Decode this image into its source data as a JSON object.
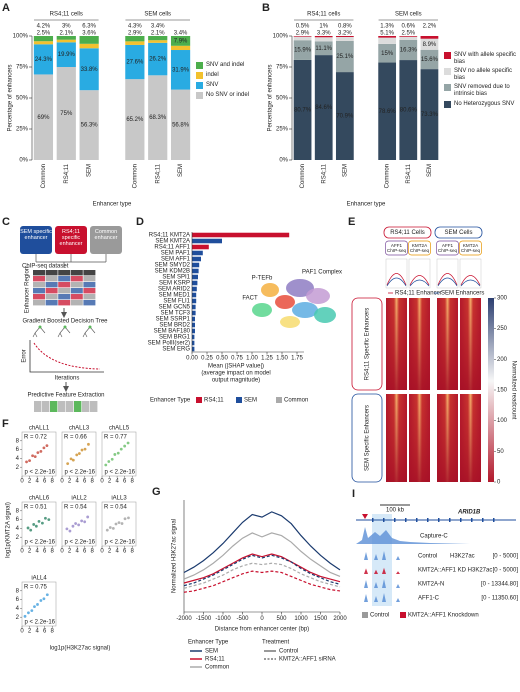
{
  "panel_letters": [
    "A",
    "B",
    "C",
    "D",
    "E",
    "F",
    "G",
    "I"
  ],
  "chart_data": [
    {
      "type": "stacked_bar",
      "ylabel": "Percentage of enhancers",
      "xlabel": "Enhancer type",
      "groups": [
        {
          "name": "RS4;11 cells",
          "categories": [
            "Common",
            "RS4;11",
            "SEM"
          ]
        },
        {
          "name": "SEM cells",
          "categories": [
            "Common",
            "RS4;11",
            "SEM"
          ]
        }
      ],
      "ylim": [
        0,
        100
      ],
      "yticks": [
        {
          "value": 0,
          "label": "0%"
        },
        {
          "value": 25,
          "label": "25%"
        },
        {
          "value": 50,
          "label": "50%"
        },
        {
          "value": 75,
          "label": "75%"
        },
        {
          "value": 100,
          "label": "100%"
        }
      ],
      "series": [
        {
          "name": "No SNV or indel",
          "color": "#c8c8c8",
          "values": [
            69,
            75,
            56.3,
            65.2,
            68.3,
            56.8
          ],
          "value_labels": [
            "69%",
            "75%",
            "56.3%",
            "65.2%",
            "68.3%",
            "56.8%"
          ]
        },
        {
          "name": "SNV",
          "color": "#29abe2",
          "values": [
            24.3,
            19.9,
            33.8,
            27.6,
            26.2,
            31.9
          ],
          "value_labels": [
            "24.3%",
            "19.9%",
            "33.8%",
            "27.6%",
            "26.2%",
            "31.9%"
          ]
        },
        {
          "name": "indel",
          "color": "#f2c12e",
          "values": [
            2.5,
            2.1,
            3.6,
            2.9,
            2.1,
            3.4
          ],
          "value_labels": [
            "2.5%",
            "2.1%",
            "3.6%",
            "2.9%",
            "2.1%",
            "3.4%"
          ]
        },
        {
          "name": "SNV and indel",
          "color": "#4cae4c",
          "values": [
            4.2,
            3,
            6.3,
            4.3,
            3.4,
            7.9
          ],
          "value_labels": [
            "4.2%",
            "3%",
            "6.3%",
            "4.3%",
            "3.4%",
            "7.9%"
          ]
        }
      ]
    },
    {
      "type": "stacked_bar",
      "ylabel": "Percentage of enhancers",
      "xlabel": "Enhancer type",
      "groups": [
        {
          "name": "RS4;11 cells",
          "categories": [
            "Common",
            "RS4;11",
            "SEM"
          ]
        },
        {
          "name": "SEM cells",
          "categories": [
            "Common",
            "RS4;11",
            "SEM"
          ]
        }
      ],
      "ylim": [
        0,
        100
      ],
      "yticks": [
        {
          "value": 0,
          "label": "0%"
        },
        {
          "value": 25,
          "label": "25%"
        },
        {
          "value": 50,
          "label": "50%"
        },
        {
          "value": 75,
          "label": "75%"
        },
        {
          "value": 100,
          "label": "100%"
        }
      ],
      "series": [
        {
          "name": "No Heterozygous SNV",
          "color": "#34495e",
          "values": [
            80.7,
            84.6,
            70.9,
            78.6,
            80.6,
            73.3
          ],
          "value_labels": [
            "80.7%",
            "84.6%",
            "70.9%",
            "78.6%",
            "80.6%",
            "73.3%"
          ]
        },
        {
          "name": "SNV removed due to intrinsic bias",
          "color": "#95a5a6",
          "values": [
            15.9,
            11.1,
            25.1,
            15,
            16.3,
            15.6
          ],
          "value_labels": [
            "15.9%",
            "11.1%",
            "25.1%",
            "15%",
            "16.3%",
            "15.6%"
          ]
        },
        {
          "name": "SNV no allele specific bias",
          "color": "#dcdcdc",
          "values": [
            2.9,
            3.3,
            3.2,
            5.1,
            2.5,
            8.9
          ],
          "value_labels": [
            "2.9%",
            "3.3%",
            "3.2%",
            "5.1%",
            "2.5%",
            "8.9%"
          ]
        },
        {
          "name": "SNV with allele specific bias",
          "color": "#c8102e",
          "values": [
            0.5,
            1,
            0.8,
            1.3,
            0.6,
            2.2
          ],
          "value_labels": [
            "0.5%",
            "1%",
            "0.8%",
            "1.3%",
            "0.6%",
            "2.2%"
          ]
        }
      ]
    },
    {
      "type": "hbar",
      "categories": [
        "RS4;11 KMT2A",
        "SEM KMT2A",
        "RS4;11 AFF1",
        "SEM PAF1",
        "SEM AFF1",
        "SEM SMYD2",
        "SEM KDM2B",
        "SEM SPI1",
        "SEM KSRP",
        "SEM ARID2",
        "SEM MED1",
        "SEM FLI1",
        "SEM GCN5",
        "SEM TCF3",
        "SEM SSRP1",
        "SEM BRD2",
        "SEM BAF180",
        "SEM BRG1",
        "SEM PolII(ser2)",
        "SEM ERG"
      ],
      "values": [
        1.62,
        0.5,
        0.28,
        0.18,
        0.15,
        0.12,
        0.11,
        0.1,
        0.09,
        0.08,
        0.07,
        0.07,
        0.06,
        0.06,
        0.05,
        0.05,
        0.05,
        0.04,
        0.04,
        0.04
      ],
      "bar_colors": [
        "#c8102e",
        "#1f4e9c",
        "#c8102e",
        "#1f4e9c",
        "#1f4e9c",
        "#1f4e9c",
        "#1f4e9c",
        "#1f4e9c",
        "#1f4e9c",
        "#1f4e9c",
        "#1f4e9c",
        "#1f4e9c",
        "#1f4e9c",
        "#1f4e9c",
        "#1f4e9c",
        "#1f4e9c",
        "#1f4e9c",
        "#1f4e9c",
        "#1f4e9c",
        "#1f4e9c"
      ],
      "xlim": [
        0,
        1.8
      ],
      "xticks": [
        {
          "value": 0,
          "label": "0.00"
        },
        {
          "value": 0.25,
          "label": "0.25"
        },
        {
          "value": 0.5,
          "label": "0.50"
        },
        {
          "value": 0.75,
          "label": "0.75"
        },
        {
          "value": 1,
          "label": "1.00"
        },
        {
          "value": 1.25,
          "label": "1.25"
        },
        {
          "value": 1.5,
          "label": "1.50"
        },
        {
          "value": 1.75,
          "label": "1.75"
        }
      ],
      "xlabel": [
        "Mean (|SHAP value|)",
        "(average impact on model",
        "output magnitude)"
      ],
      "legend_title": "Enhancer Type",
      "legend": [
        {
          "name": "RS4;11",
          "color": "#c8102e"
        },
        {
          "name": "SEM",
          "color": "#1f4e9c"
        },
        {
          "name": "Common",
          "color": "#aaaaaa"
        }
      ],
      "annotations": [
        "PAF1 Complex",
        "P-TEFb",
        "FACT"
      ]
    },
    {
      "type": "line",
      "ylabel": "Normalized H3K27ac signal",
      "xlabel": "Distance from enhancer center (bp)",
      "x": [
        -2000,
        -1750,
        -1500,
        -1250,
        -1000,
        -750,
        -500,
        -250,
        0,
        250,
        500,
        750,
        1000,
        1250,
        1500,
        1750,
        2000
      ],
      "xlim": [
        -2000,
        2000
      ],
      "xticks": [
        -2000,
        -1500,
        -1000,
        -500,
        0,
        500,
        1000,
        1500,
        2000
      ],
      "ylim": [
        0,
        0.85
      ],
      "series": [
        {
          "color": "#1a3a6e",
          "dashed": false,
          "values": [
            0.3,
            0.34,
            0.39,
            0.45,
            0.52,
            0.6,
            0.68,
            0.74,
            0.72,
            0.76,
            0.73,
            0.67,
            0.58,
            0.5,
            0.43,
            0.37,
            0.32
          ]
        },
        {
          "color": "#aaaaaa",
          "dashed": false,
          "values": [
            0.25,
            0.28,
            0.32,
            0.37,
            0.43,
            0.5,
            0.56,
            0.6,
            0.57,
            0.6,
            0.58,
            0.53,
            0.46,
            0.4,
            0.35,
            0.3,
            0.27
          ]
        },
        {
          "color": "#c8102e",
          "dashed": false,
          "values": [
            0.22,
            0.24,
            0.26,
            0.29,
            0.33,
            0.37,
            0.41,
            0.44,
            0.42,
            0.44,
            0.42,
            0.38,
            0.34,
            0.3,
            0.27,
            0.25,
            0.23
          ]
        },
        {
          "color": "#1a3a6e",
          "dashed": true,
          "values": [
            0.2,
            0.22,
            0.25,
            0.28,
            0.32,
            0.36,
            0.4,
            0.43,
            0.41,
            0.43,
            0.41,
            0.38,
            0.33,
            0.29,
            0.26,
            0.23,
            0.21
          ]
        },
        {
          "color": "#aaaaaa",
          "dashed": true,
          "values": [
            0.18,
            0.2,
            0.22,
            0.25,
            0.28,
            0.32,
            0.35,
            0.37,
            0.36,
            0.37,
            0.36,
            0.33,
            0.29,
            0.26,
            0.23,
            0.21,
            0.19
          ]
        },
        {
          "color": "#c8102e",
          "dashed": true,
          "values": [
            0.15,
            0.16,
            0.18,
            0.2,
            0.23,
            0.26,
            0.29,
            0.31,
            0.3,
            0.31,
            0.3,
            0.27,
            0.24,
            0.21,
            0.19,
            0.17,
            0.16
          ]
        }
      ],
      "legend": {
        "enhancer_title": "Enhancer Type",
        "enhancers": [
          {
            "name": "SEM",
            "color": "#1a3a6e"
          },
          {
            "name": "RS4;11",
            "color": "#c8102e"
          },
          {
            "name": "Common",
            "color": "#aaaaaa"
          }
        ],
        "treatment_title": "Treatment",
        "treatments": [
          {
            "name": "Control",
            "dashed": false
          },
          {
            "name": "KMT2A::AFF1 siRNA",
            "dashed": true
          }
        ]
      }
    },
    {
      "type": "scatter",
      "ylabel": "log1p(KMT2A signal)",
      "xlabel": "log1p(H3K27ac signal)",
      "xlim": [
        0,
        9
      ],
      "ylim": [
        0,
        10
      ],
      "xticks": [
        0,
        2,
        4,
        6,
        8
      ],
      "yticks": [
        2,
        4,
        6,
        8
      ],
      "subplots": [
        {
          "title": "chALL1",
          "color": "#c0392b",
          "r_label": "R = 0.72",
          "p_label": "p < 2.2e-16",
          "x": [
            1.2,
            2,
            2.8,
            3.5,
            4.2,
            5,
            5.8,
            6.6
          ],
          "values": [
            3.2,
            3.5,
            4.6,
            4.4,
            5.3,
            5.6,
            6.4,
            6.9
          ]
        },
        {
          "title": "chALL3",
          "color": "#c8861b",
          "r_label": "R = 0.66",
          "p_label": "p < 2.2e-16",
          "x": [
            1.5,
            2.4,
            3,
            3.9,
            4.6,
            5.3,
            6.1,
            7
          ],
          "values": [
            2.8,
            3.9,
            3.6,
            4.8,
            5.1,
            5.9,
            6.1,
            7.2
          ]
        },
        {
          "title": "chALL5",
          "color": "#5cb85c",
          "r_label": "R = 0.77",
          "p_label": "p < 2.2e-16",
          "x": [
            1,
            1.8,
            2.7,
            3.4,
            4.3,
            5.1,
            6,
            6.9
          ],
          "values": [
            2.5,
            3.3,
            3.8,
            4.9,
            5.2,
            6.1,
            6.8,
            7.5
          ]
        },
        {
          "title": "chALL6",
          "color": "#1e7b5a",
          "r_label": "R = 0.51",
          "p_label": "p < 2.2e-16",
          "x": [
            1.6,
            2.3,
            3.1,
            3.8,
            4.5,
            5.4,
            6.2,
            7.1
          ],
          "values": [
            4.1,
            3.6,
            4.9,
            4.5,
            5.6,
            5.2,
            6.3,
            6
          ]
        },
        {
          "title": "iALL2",
          "color": "#8e7cc3",
          "r_label": "R = 0.54",
          "p_label": "p < 2.2e-16",
          "x": [
            1.3,
            2.1,
            2.9,
            3.6,
            4.4,
            5.2,
            6,
            6.8
          ],
          "values": [
            3.9,
            3.4,
            4.5,
            5.1,
            4.8,
            5.7,
            5.5,
            6.6
          ]
        },
        {
          "title": "iALL3",
          "color": "#9a9a9a",
          "r_label": "R = 0.54",
          "p_label": "p < 2.2e-16",
          "x": [
            1.4,
            2.2,
            3,
            3.7,
            4.5,
            5.3,
            6.1,
            7
          ],
          "values": [
            3.6,
            4.2,
            4,
            5,
            5.3,
            5.1,
            6.2,
            6.4
          ]
        },
        {
          "title": "iALL4",
          "color": "#3498db",
          "r_label": "R = 0.75",
          "p_label": "p < 2.2e-16",
          "x": [
            0.8,
            1.7,
            2.6,
            3.3,
            4.1,
            5,
            5.8,
            6.7
          ],
          "values": [
            2.2,
            3,
            3.5,
            4.4,
            4.9,
            5.8,
            6.2,
            7.1
          ]
        }
      ]
    }
  ],
  "panels": {
    "C": {
      "boxes": [
        "SEM specific enhancer",
        "RS4;11 specific enhancer",
        "Common enhancer"
      ],
      "dataset": "ChIP-seq dataset",
      "region": "Enhancer Region",
      "model": "Gradient Boosted Decision Tree",
      "error": "Error",
      "iterations": "Iterations",
      "extraction": "Predictive Feature Extraction"
    },
    "E": {
      "headers": [
        "RS4;11 Cells",
        "SEM Cells"
      ],
      "subheaders": [
        "AFF1 ChIP-seq",
        "KMT2A ChIP-seq",
        "AFF1 ChIP-seq",
        "KMT2A ChIP-seq"
      ],
      "profile_legend": [
        "RS4;11 Enhancer",
        "SEM Enhancers"
      ],
      "rows": [
        "RS4;11 Specific Enhancers",
        "SEM Specific Enhancers"
      ],
      "colorbar": {
        "range": [
          0,
          300
        ],
        "ticks": [
          0,
          50,
          100,
          150,
          200,
          250,
          300
        ],
        "label": "Normalized readcount"
      }
    },
    "I": {
      "scale": "100 kb",
      "gene": "ARID1B",
      "tracks": [
        {
          "name": "Capture-C"
        },
        {
          "name": "Control",
          "mark": "H3K27ac",
          "range": "[0 - 5000]"
        },
        {
          "name": "KMT2A::AFF1 KD H3K27ac",
          "range": "[0 - 5000]"
        },
        {
          "name": "KMT2A-N",
          "range": "[0 - 13344.80]"
        },
        {
          "name": "AFF1-C",
          "range": "[0 - 11350.60]"
        }
      ],
      "legend": [
        "Control",
        "KMT2A::AFF1 Knockdown"
      ]
    }
  }
}
